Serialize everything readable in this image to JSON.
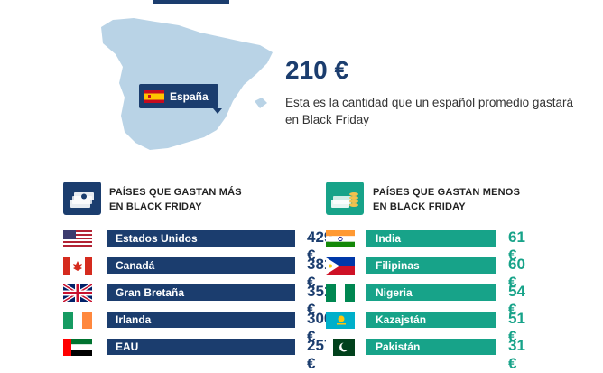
{
  "hero": {
    "map_label": "España",
    "amount": "210 €",
    "description": "Esta es la cantidad que un español promedio gastará en Black Friday"
  },
  "most": {
    "title_line1": "PAÍSES QUE GASTAN MÁS",
    "title_line2": "EN BLACK FRIDAY",
    "items": [
      {
        "country": "Estados Unidos",
        "value": "429 €"
      },
      {
        "country": "Canadá",
        "value": "381 €"
      },
      {
        "country": "Gran Bretaña",
        "value": "351 €"
      },
      {
        "country": "Irlanda",
        "value": "300 €"
      },
      {
        "country": "EAU",
        "value": "257 €"
      }
    ]
  },
  "least": {
    "title_line1": "PAÍSES QUE GASTAN MENOS",
    "title_line2": "EN BLACK FRIDAY",
    "items": [
      {
        "country": "India",
        "value": "61 €"
      },
      {
        "country": "Filipinas",
        "value": "60 €"
      },
      {
        "country": "Nigeria",
        "value": "54 €"
      },
      {
        "country": "Kazajstán",
        "value": "51 €"
      },
      {
        "country": "Pakistán",
        "value": "31 €"
      }
    ]
  },
  "colors": {
    "navy": "#1b3d6e",
    "teal": "#17a389",
    "map": "#b9d3e6"
  }
}
